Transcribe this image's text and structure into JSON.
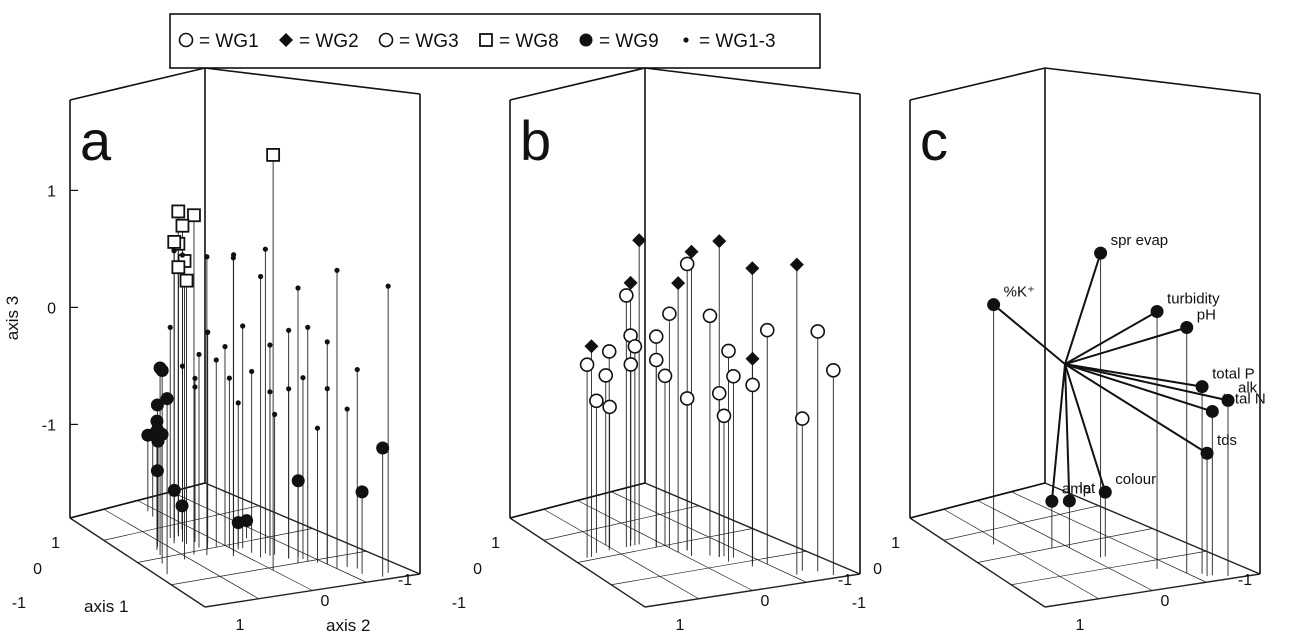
{
  "legend": {
    "items": [
      {
        "marker": "circle-open",
        "label": "= WG1"
      },
      {
        "marker": "diamond-filled",
        "label": "= WG2"
      },
      {
        "marker": "circle-open",
        "label": "= WG3"
      },
      {
        "marker": "square-open",
        "label": "= WG8"
      },
      {
        "marker": "circle-filled",
        "label": "= WG9"
      },
      {
        "marker": "dot-small",
        "label": "= WG1-3"
      }
    ]
  },
  "axes": {
    "z_label": "axis 3",
    "x_label": "axis 1",
    "y_label": "axis 2",
    "z_ticks": [
      "1",
      "0",
      "-1"
    ],
    "left_ticks": [
      "1",
      "0",
      "-1"
    ],
    "right_ticks": [
      "1",
      "0",
      "-1"
    ]
  },
  "chart_data": [
    {
      "type": "scatter",
      "panel": "a",
      "title": "a",
      "xlabel": "axis 1",
      "ylabel": "axis 2",
      "zlabel": "axis 3",
      "zlim": [
        -1.8,
        1.8
      ],
      "series": [
        {
          "name": "WG8",
          "marker": "square-open",
          "points": [
            [
              0.55,
              -0.1,
              0.75
            ],
            [
              0.4,
              -0.05,
              1.1
            ],
            [
              0.3,
              0.2,
              0.9
            ],
            [
              0.2,
              0.35,
              0.95
            ],
            [
              0.25,
              0.3,
              0.7
            ],
            [
              0.35,
              0.25,
              0.75
            ],
            [
              0.3,
              0.15,
              0.45
            ],
            [
              0.25,
              0.3,
              0.5
            ],
            [
              0.0,
              -0.55,
              1.75
            ]
          ]
        },
        {
          "name": "WG9",
          "marker": "circle-filled",
          "points": [
            [
              0.9,
              -0.3,
              -0.3
            ],
            [
              0.8,
              -0.1,
              -0.15
            ],
            [
              0.7,
              0.05,
              -0.2
            ],
            [
              0.65,
              0.15,
              -0.7
            ],
            [
              0.6,
              0.2,
              -0.8
            ],
            [
              0.5,
              0.3,
              -0.95
            ],
            [
              0.45,
              0.3,
              -0.9
            ],
            [
              0.6,
              0.2,
              -1.15
            ],
            [
              0.3,
              0.3,
              -1.4
            ],
            [
              0.3,
              0.5,
              -1.05
            ],
            [
              0.2,
              0.6,
              -0.8
            ],
            [
              0.15,
              0.7,
              -1.1
            ],
            [
              0.1,
              0.8,
              -1.15
            ],
            [
              -0.1,
              -0.05,
              -1.6
            ],
            [
              -0.3,
              0.05,
              -1.65
            ],
            [
              -0.7,
              -0.95,
              -0.7
            ],
            [
              -0.6,
              -0.85,
              -1.1
            ],
            [
              -0.4,
              -0.4,
              -1.15
            ],
            [
              0.1,
              0.4,
              -1.6
            ]
          ]
        },
        {
          "name": "WG1-3",
          "marker": "dot-small",
          "points": [
            [
              0.3,
              -0.1,
              0.75
            ],
            [
              0.1,
              -0.2,
              0.75
            ],
            [
              -0.1,
              -0.3,
              0.6
            ],
            [
              0.4,
              0.2,
              0.7
            ],
            [
              0.3,
              0.2,
              0.65
            ],
            [
              0.05,
              -0.15,
              0.75
            ],
            [
              -0.2,
              -0.25,
              0.8
            ],
            [
              -0.5,
              -0.7,
              0.75
            ],
            [
              -0.8,
              -0.9,
              0.65
            ],
            [
              -0.3,
              -0.5,
              0.55
            ],
            [
              0.2,
              0.0,
              0.05
            ],
            [
              0.1,
              0.1,
              0.0
            ],
            [
              0.0,
              0.0,
              -0.1
            ],
            [
              -0.1,
              -0.1,
              0.1
            ],
            [
              -0.2,
              -0.3,
              0.0
            ],
            [
              -0.3,
              -0.4,
              0.15
            ],
            [
              -0.4,
              -0.5,
              0.2
            ],
            [
              -0.5,
              -0.6,
              0.1
            ],
            [
              0.3,
              0.2,
              -0.3
            ],
            [
              0.2,
              0.15,
              -0.4
            ],
            [
              0.1,
              0.0,
              -0.2
            ],
            [
              0.0,
              -0.05,
              -0.35
            ],
            [
              -0.1,
              -0.2,
              -0.25
            ],
            [
              -0.2,
              -0.3,
              -0.4
            ],
            [
              -0.3,
              -0.4,
              -0.35
            ],
            [
              -0.4,
              -0.45,
              -0.25
            ],
            [
              -0.5,
              -0.6,
              -0.3
            ],
            [
              -0.6,
              -0.7,
              -0.45
            ],
            [
              0.15,
              0.2,
              -0.5
            ],
            [
              -0.05,
              -0.1,
              -0.55
            ],
            [
              -0.25,
              -0.3,
              -0.6
            ],
            [
              -0.45,
              -0.55,
              -0.65
            ],
            [
              -0.65,
              -0.75,
              -0.1
            ],
            [
              0.35,
              0.3,
              0.0
            ],
            [
              0.25,
              0.05,
              -0.15
            ]
          ]
        }
      ]
    },
    {
      "type": "scatter",
      "panel": "b",
      "title": "b",
      "zlim": [
        -1.8,
        1.8
      ],
      "series": [
        {
          "name": "WG2",
          "marker": "diamond-filled",
          "points": [
            [
              0.8,
              0.05,
              0.0
            ],
            [
              0.2,
              0.1,
              0.8
            ],
            [
              0.3,
              0.1,
              0.45
            ],
            [
              -0.05,
              -0.25,
              0.8
            ],
            [
              -0.35,
              -0.6,
              0.75
            ],
            [
              -0.25,
              -0.35,
              0.9
            ],
            [
              -0.55,
              -0.85,
              0.85
            ],
            [
              -0.4,
              -0.55,
              -0.05
            ],
            [
              0.0,
              -0.15,
              0.5
            ]
          ]
        },
        {
          "name": "WG1",
          "marker": "circle-open",
          "points": [
            [
              0.85,
              0.05,
              -0.15
            ],
            [
              0.7,
              0.1,
              -0.5
            ],
            [
              0.55,
              0.1,
              -0.1
            ],
            [
              0.5,
              0.15,
              -0.6
            ],
            [
              0.5,
              0.2,
              -0.35
            ],
            [
              0.35,
              0.1,
              0.35
            ],
            [
              0.3,
              0.1,
              0.0
            ],
            [
              0.25,
              0.1,
              -0.1
            ],
            [
              0.2,
              0.2,
              -0.3
            ],
            [
              0.1,
              0.0,
              0.0
            ],
            [
              0.1,
              0.0,
              -0.2
            ],
            [
              0.0,
              0.0,
              -0.35
            ],
            [
              0.0,
              -0.05,
              0.2
            ],
            [
              -0.1,
              -0.15,
              -0.5
            ],
            [
              -0.1,
              -0.15,
              0.65
            ],
            [
              -0.2,
              -0.3,
              0.25
            ],
            [
              -0.25,
              -0.35,
              -0.4
            ],
            [
              -0.3,
              -0.35,
              -0.6
            ],
            [
              -0.35,
              -0.4,
              -0.25
            ],
            [
              -0.45,
              -0.5,
              -0.3
            ],
            [
              -0.5,
              -0.6,
              0.2
            ],
            [
              -0.65,
              -0.8,
              -0.5
            ],
            [
              -0.75,
              -0.85,
              0.25
            ],
            [
              -0.8,
              -0.95,
              -0.05
            ],
            [
              -0.25,
              -0.45,
              0.0
            ]
          ]
        }
      ]
    },
    {
      "type": "scatter",
      "panel": "c",
      "title": "c",
      "zlim": [
        -1.8,
        1.8
      ],
      "center": [
        0.0,
        0.0,
        -0.25
      ],
      "series": [
        {
          "name": "",
          "marker": "circle-filled",
          "points": [
            {
              "label": "spr evap",
              "x": -0.1,
              "y": -0.3,
              "z": 0.8
            },
            {
              "label": "turbidity",
              "x": -0.35,
              "y": -0.65,
              "z": 0.4
            },
            {
              "label": "pH",
              "x": -0.5,
              "y": -0.8,
              "z": 0.3
            },
            {
              "label": "total P",
              "x": -0.6,
              "y": -0.85,
              "z": -0.2
            },
            {
              "label": "alk",
              "x": -0.75,
              "y": -0.95,
              "z": -0.3
            },
            {
              "label": "total N",
              "x": -0.65,
              "y": -0.9,
              "z": -0.4
            },
            {
              "label": "tds",
              "x": -0.6,
              "y": -0.9,
              "z": -0.75
            },
            {
              "label": "colour",
              "x": -0.15,
              "y": -0.3,
              "z": -1.25
            },
            {
              "label": "lat",
              "x": 0.0,
              "y": -0.05,
              "z": -1.4
            },
            {
              "label": "amp",
              "x": 0.15,
              "y": 0.0,
              "z": -1.4
            },
            {
              "label": "%K⁺",
              "x": 0.6,
              "y": 0.25,
              "z": 0.25
            }
          ]
        }
      ]
    }
  ]
}
